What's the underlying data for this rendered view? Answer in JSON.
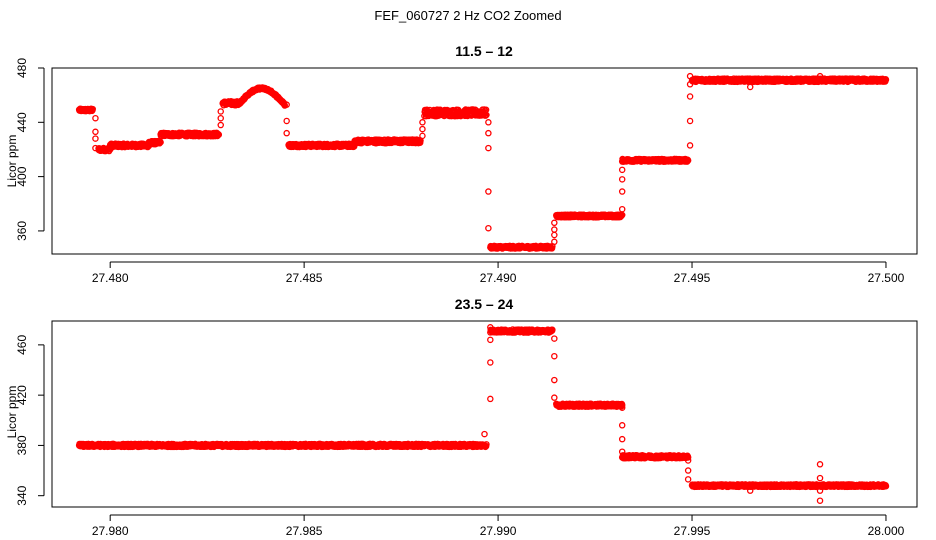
{
  "title": "FEF_060727  2 Hz CO2 Zoomed",
  "chart_data": [
    {
      "type": "scatter",
      "title": "11.5 – 12",
      "xlabel": "",
      "ylabel": "Licor ppm",
      "xlim": [
        27.4785,
        27.5008
      ],
      "ylim": [
        343,
        480
      ],
      "xticks": [
        "27.480",
        "27.485",
        "27.490",
        "27.495",
        "27.500"
      ],
      "yticks": [
        "360",
        "400",
        "440",
        "480"
      ],
      "grid": false,
      "marker_color": "#ff0000",
      "segments": [
        {
          "x0": 27.4792,
          "x1": 27.47955,
          "y": 449,
          "noise": 1.0
        },
        {
          "x0": 27.4797,
          "x1": 27.48,
          "y": 420,
          "noise": 1.2
        },
        {
          "x0": 27.48,
          "x1": 27.481,
          "y": 423,
          "noise": 1.3
        },
        {
          "x0": 27.481,
          "x1": 27.4813,
          "y": 425,
          "noise": 1.2
        },
        {
          "x0": 27.4813,
          "x1": 27.4828,
          "y": 431,
          "noise": 1.3
        },
        {
          "x0": 27.4829,
          "x1": 27.4833,
          "y": 454,
          "noise": 1.5
        },
        {
          "x0": 27.4833,
          "x1": 27.4845,
          "y": 459,
          "noise": 4.5
        },
        {
          "x0": 27.4846,
          "x1": 27.4863,
          "y": 423,
          "noise": 1.2
        },
        {
          "x0": 27.4863,
          "x1": 27.488,
          "y": 426,
          "noise": 1.4
        },
        {
          "x0": 27.4881,
          "x1": 27.4897,
          "y": 447,
          "noise": 2.5
        },
        {
          "x0": 27.4898,
          "x1": 27.4914,
          "y": 348,
          "noise": 1.0
        },
        {
          "x0": 27.4915,
          "x1": 27.4932,
          "y": 371,
          "noise": 1.0
        },
        {
          "x0": 27.4932,
          "x1": 27.4949,
          "y": 412,
          "noise": 1.0
        },
        {
          "x0": 27.495,
          "x1": 27.5,
          "y": 471,
          "noise": 1.2
        }
      ],
      "transitions": [
        {
          "x": 27.47962,
          "y": [
            443,
            433,
            428,
            421
          ]
        },
        {
          "x": 27.48285,
          "y": [
            438,
            443,
            448
          ]
        },
        {
          "x": 27.48455,
          "y": [
            453,
            441,
            432
          ]
        },
        {
          "x": 27.48805,
          "y": [
            430,
            435,
            440
          ]
        },
        {
          "x": 27.48975,
          "y": [
            440,
            432,
            421,
            389,
            362
          ]
        },
        {
          "x": 27.49145,
          "y": [
            352,
            357,
            361,
            366
          ]
        },
        {
          "x": 27.4932,
          "y": [
            376,
            389,
            398,
            405
          ]
        },
        {
          "x": 27.49495,
          "y": [
            423,
            441,
            459,
            468,
            474
          ]
        }
      ],
      "outliers": [
        {
          "x": 27.4965,
          "y": 466
        },
        {
          "x": 27.4983,
          "y": 474
        }
      ]
    },
    {
      "type": "scatter",
      "title": "23.5 – 24",
      "xlabel": "",
      "ylabel": "Licor ppm",
      "xlim": [
        27.9785,
        28.0008
      ],
      "ylim": [
        331,
        479
      ],
      "xticks": [
        "27.980",
        "27.985",
        "27.990",
        "27.995",
        "28.000"
      ],
      "yticks": [
        "340",
        "380",
        "420",
        "460"
      ],
      "grid": false,
      "marker_color": "#ff0000",
      "segments": [
        {
          "x0": 27.9792,
          "x1": 27.9897,
          "y": 380,
          "noise": 1.2
        },
        {
          "x0": 27.9898,
          "x1": 27.9914,
          "y": 471,
          "noise": 1.2
        },
        {
          "x0": 27.9915,
          "x1": 27.9932,
          "y": 412,
          "noise": 1.2
        },
        {
          "x0": 27.9932,
          "x1": 27.9949,
          "y": 371,
          "noise": 1.2
        },
        {
          "x0": 27.995,
          "x1": 28.0,
          "y": 348,
          "noise": 1.0
        }
      ],
      "transitions": [
        {
          "x": 27.98965,
          "y": [
            389
          ]
        },
        {
          "x": 27.9898,
          "y": [
            417,
            446,
            464,
            474
          ]
        },
        {
          "x": 27.99145,
          "y": [
            465,
            451,
            432,
            418
          ]
        },
        {
          "x": 27.9932,
          "y": [
            410,
            396,
            385,
            375
          ]
        },
        {
          "x": 27.9949,
          "y": [
            368,
            360,
            353
          ]
        }
      ],
      "outliers": [
        {
          "x": 27.9965,
          "y": 344
        },
        {
          "x": 27.9983,
          "y": 365
        },
        {
          "x": 27.9983,
          "y": 354
        },
        {
          "x": 27.9983,
          "y": 344
        },
        {
          "x": 27.9983,
          "y": 336
        }
      ]
    }
  ]
}
